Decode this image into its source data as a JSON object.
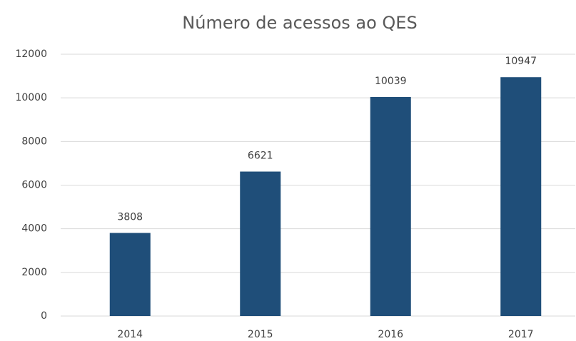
{
  "chart_data": {
    "type": "bar",
    "title": "Número de acessos ao QES",
    "categories": [
      "2014",
      "2015",
      "2016",
      "2017"
    ],
    "values": [
      3808,
      6621,
      10039,
      10947
    ],
    "color": "#1f4e79",
    "ylim": [
      0,
      12000
    ],
    "yticks": [
      0,
      2000,
      4000,
      6000,
      8000,
      10000,
      12000
    ],
    "grid": true
  }
}
